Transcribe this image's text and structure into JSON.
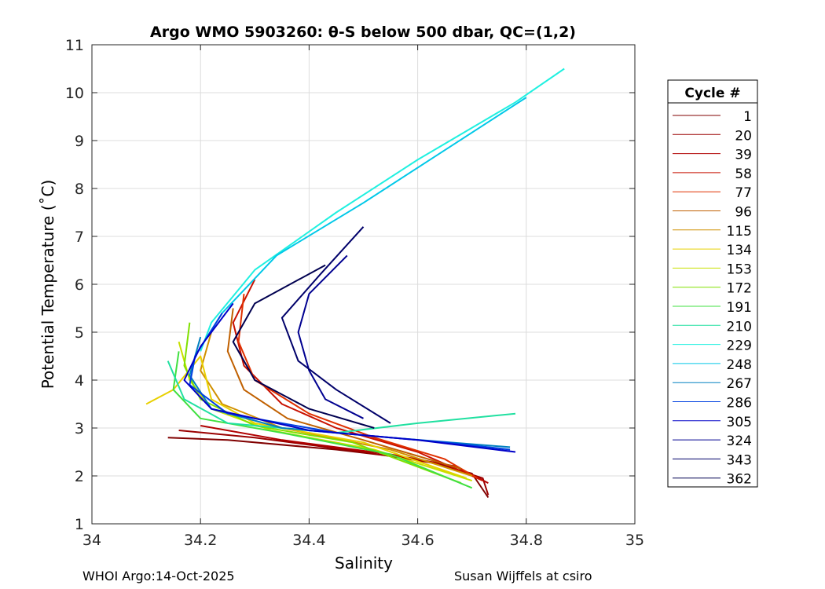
{
  "chart_data": {
    "type": "line",
    "title": "Argo WMO 5903260: θ-S below 500 dbar,  QC=(1,2)",
    "xlabel": "Salinity",
    "ylabel": "Potential Temperature (˚C)",
    "xlim": [
      34,
      35
    ],
    "ylim": [
      1,
      11
    ],
    "xticks": [
      "34",
      "34.2",
      "34.4",
      "34.6",
      "34.8",
      "35"
    ],
    "yticks": [
      "1",
      "2",
      "3",
      "4",
      "5",
      "6",
      "7",
      "8",
      "9",
      "10",
      "11"
    ],
    "grid": true,
    "legend_title": "Cycle #",
    "legend_position": "right-outside",
    "series": [
      {
        "name": "1",
        "color": "#800000",
        "points": [
          [
            34.14,
            2.8
          ],
          [
            34.25,
            2.75
          ],
          [
            34.45,
            2.55
          ],
          [
            34.6,
            2.35
          ],
          [
            34.7,
            2.05
          ],
          [
            34.73,
            1.55
          ]
        ]
      },
      {
        "name": "20",
        "color": "#9a0000",
        "points": [
          [
            34.16,
            2.95
          ],
          [
            34.3,
            2.8
          ],
          [
            34.5,
            2.5
          ],
          [
            34.64,
            2.25
          ],
          [
            34.72,
            1.95
          ],
          [
            34.73,
            1.6
          ]
        ]
      },
      {
        "name": "39",
        "color": "#b00000",
        "points": [
          [
            34.2,
            3.05
          ],
          [
            34.35,
            2.75
          ],
          [
            34.55,
            2.45
          ],
          [
            34.67,
            2.2
          ],
          [
            34.73,
            1.85
          ]
        ]
      },
      {
        "name": "58",
        "color": "#c81000",
        "points": [
          [
            34.3,
            6.1
          ],
          [
            34.26,
            5.2
          ],
          [
            34.28,
            4.3
          ],
          [
            34.35,
            3.5
          ],
          [
            34.45,
            3.0
          ],
          [
            34.6,
            2.5
          ],
          [
            34.72,
            1.9
          ]
        ]
      },
      {
        "name": "77",
        "color": "#e03000",
        "points": [
          [
            34.28,
            5.8
          ],
          [
            34.27,
            4.8
          ],
          [
            34.3,
            4.0
          ],
          [
            34.4,
            3.3
          ],
          [
            34.52,
            2.8
          ],
          [
            34.65,
            2.35
          ],
          [
            34.71,
            1.95
          ]
        ]
      },
      {
        "name": "96",
        "color": "#c06000",
        "points": [
          [
            34.26,
            5.5
          ],
          [
            34.25,
            4.6
          ],
          [
            34.28,
            3.8
          ],
          [
            34.36,
            3.2
          ],
          [
            34.5,
            2.75
          ],
          [
            34.68,
            2.15
          ]
        ]
      },
      {
        "name": "115",
        "color": "#d09000",
        "points": [
          [
            34.22,
            5.0
          ],
          [
            34.2,
            4.2
          ],
          [
            34.24,
            3.5
          ],
          [
            34.35,
            3.0
          ],
          [
            34.55,
            2.55
          ],
          [
            34.7,
            2.0
          ]
        ]
      },
      {
        "name": "134",
        "color": "#e8d000",
        "points": [
          [
            34.1,
            3.5
          ],
          [
            34.15,
            3.8
          ],
          [
            34.2,
            4.5
          ],
          [
            34.22,
            3.6
          ],
          [
            34.3,
            3.1
          ],
          [
            34.5,
            2.7
          ],
          [
            34.69,
            1.95
          ]
        ]
      },
      {
        "name": "153",
        "color": "#c8e000",
        "points": [
          [
            34.16,
            4.8
          ],
          [
            34.18,
            4.0
          ],
          [
            34.22,
            3.4
          ],
          [
            34.33,
            2.95
          ],
          [
            34.52,
            2.55
          ],
          [
            34.7,
            1.9
          ]
        ]
      },
      {
        "name": "172",
        "color": "#80e000",
        "points": [
          [
            34.18,
            5.2
          ],
          [
            34.17,
            4.3
          ],
          [
            34.2,
            3.6
          ],
          [
            34.3,
            3.05
          ],
          [
            34.48,
            2.7
          ],
          [
            34.68,
            1.85
          ]
        ]
      },
      {
        "name": "191",
        "color": "#40e040",
        "points": [
          [
            34.16,
            4.6
          ],
          [
            34.15,
            3.8
          ],
          [
            34.2,
            3.2
          ],
          [
            34.35,
            2.9
          ],
          [
            34.55,
            2.45
          ],
          [
            34.7,
            1.75
          ]
        ]
      },
      {
        "name": "210",
        "color": "#20e0a0",
        "points": [
          [
            34.14,
            4.4
          ],
          [
            34.17,
            3.6
          ],
          [
            34.25,
            3.1
          ],
          [
            34.45,
            2.9
          ],
          [
            34.6,
            3.1
          ],
          [
            34.78,
            3.3
          ]
        ]
      },
      {
        "name": "229",
        "color": "#20f0e0",
        "points": [
          [
            34.2,
            4.6
          ],
          [
            34.22,
            5.2
          ],
          [
            34.3,
            6.3
          ],
          [
            34.45,
            7.5
          ],
          [
            34.6,
            8.6
          ],
          [
            34.78,
            9.8
          ],
          [
            34.87,
            10.5
          ]
        ]
      },
      {
        "name": "248",
        "color": "#00c8e8",
        "points": [
          [
            34.19,
            4.5
          ],
          [
            34.24,
            5.4
          ],
          [
            34.34,
            6.6
          ],
          [
            34.5,
            7.7
          ],
          [
            34.65,
            8.8
          ],
          [
            34.8,
            9.9
          ]
        ]
      },
      {
        "name": "267",
        "color": "#0080c0",
        "points": [
          [
            34.2,
            4.9
          ],
          [
            34.18,
            4.1
          ],
          [
            34.22,
            3.4
          ],
          [
            34.35,
            3.0
          ],
          [
            34.55,
            2.8
          ],
          [
            34.77,
            2.6
          ]
        ]
      },
      {
        "name": "286",
        "color": "#0040e0",
        "points": [
          [
            34.24,
            5.4
          ],
          [
            34.19,
            4.5
          ],
          [
            34.18,
            3.9
          ],
          [
            34.25,
            3.3
          ],
          [
            34.45,
            2.9
          ],
          [
            34.65,
            2.7
          ],
          [
            34.77,
            2.55
          ]
        ]
      },
      {
        "name": "305",
        "color": "#0000c8",
        "points": [
          [
            34.26,
            5.6
          ],
          [
            34.2,
            4.7
          ],
          [
            34.17,
            4.0
          ],
          [
            34.22,
            3.4
          ],
          [
            34.4,
            2.95
          ],
          [
            34.6,
            2.75
          ],
          [
            34.78,
            2.5
          ]
        ]
      },
      {
        "name": "324",
        "color": "#000090",
        "points": [
          [
            34.47,
            6.6
          ],
          [
            34.4,
            5.8
          ],
          [
            34.38,
            5.0
          ],
          [
            34.4,
            4.2
          ],
          [
            34.43,
            3.6
          ],
          [
            34.5,
            3.2
          ]
        ]
      },
      {
        "name": "343",
        "color": "#00006a",
        "points": [
          [
            34.5,
            7.2
          ],
          [
            34.42,
            6.2
          ],
          [
            34.35,
            5.3
          ],
          [
            34.38,
            4.4
          ],
          [
            34.45,
            3.8
          ],
          [
            34.55,
            3.1
          ]
        ]
      },
      {
        "name": "362",
        "color": "#000050",
        "points": [
          [
            34.43,
            6.4
          ],
          [
            34.3,
            5.6
          ],
          [
            34.26,
            4.8
          ],
          [
            34.3,
            4.0
          ],
          [
            34.4,
            3.4
          ],
          [
            34.52,
            3.0
          ]
        ]
      }
    ]
  },
  "footer": {
    "left": "WHOI Argo:14-Oct-2025",
    "right": "Susan Wijffels at csiro"
  }
}
